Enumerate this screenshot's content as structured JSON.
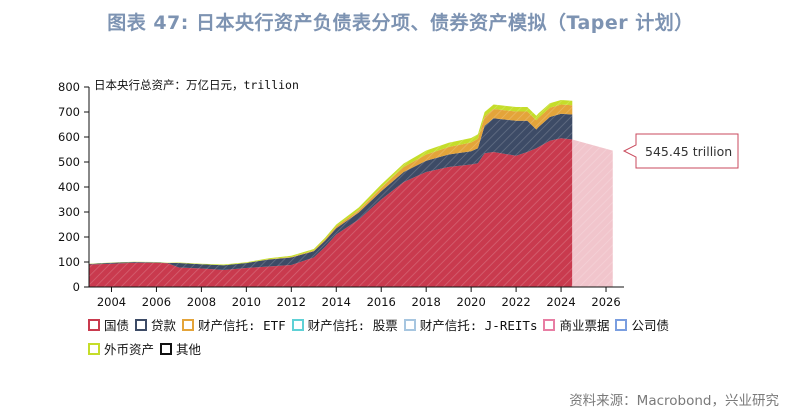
{
  "title": "图表 47: 日本央行资产负债表分项、债券资产模拟（Taper 计划）",
  "source": "资料来源：Macrobond，兴业研究",
  "colors": {
    "jgb": "#c93a4e",
    "jgb_projection": "#f1c5cc",
    "loans": "#3d4b66",
    "etf": "#e4a43a",
    "other_top": "#c5dd2a",
    "title": "#7d93b2",
    "callout_border": "#c94a5c"
  },
  "legend": [
    {
      "label": "国债",
      "color": "#c93a4e",
      "icon": "square-swatch"
    },
    {
      "label": "贷款",
      "color": "#3d4b66",
      "icon": "square-swatch"
    },
    {
      "label": "财产信托: ETF",
      "color": "#e4a43a",
      "icon": "square-swatch"
    },
    {
      "label": "财产信托: 股票",
      "color": "#5fd1d6",
      "icon": "square-swatch"
    },
    {
      "label": "财产信托: J-REITs",
      "color": "#a7c6e0",
      "icon": "square-swatch"
    },
    {
      "label": "商业票据",
      "color": "#e87ea4",
      "icon": "square-swatch"
    },
    {
      "label": "公司债",
      "color": "#7a9ee0",
      "icon": "square-swatch"
    },
    {
      "label": "外币资产",
      "color": "#c5dd2a",
      "icon": "square-swatch"
    },
    {
      "label": "其他",
      "color": "#111111",
      "icon": "square-swatch"
    }
  ],
  "chart_data": {
    "type": "area",
    "unit_label": "日本央行总资产：万亿日元，trillion",
    "xlim": [
      2003,
      2026.8
    ],
    "ylim": [
      0,
      800
    ],
    "x_ticks": [
      2004,
      2006,
      2008,
      2010,
      2012,
      2014,
      2016,
      2018,
      2020,
      2022,
      2024,
      2026
    ],
    "y_ticks": [
      0,
      100,
      200,
      300,
      400,
      500,
      600,
      700,
      800
    ],
    "x": [
      2003.0,
      2004.0,
      2005.0,
      2006.0,
      2006.5,
      2007.0,
      2008.0,
      2009.0,
      2010.0,
      2011.0,
      2012.0,
      2013.0,
      2013.5,
      2014.0,
      2015.0,
      2016.0,
      2017.0,
      2018.0,
      2019.0,
      2020.0,
      2020.3,
      2020.6,
      2021.0,
      2022.0,
      2022.5,
      2022.9,
      2023.0,
      2023.5,
      2024.0,
      2024.5
    ],
    "series": [
      {
        "name": "国债",
        "values": [
          90,
          93,
          97,
          97,
          95,
          78,
          74,
          68,
          76,
          82,
          88,
          118,
          160,
          210,
          270,
          350,
          420,
          460,
          480,
          490,
          495,
          535,
          540,
          525,
          540,
          555,
          560,
          585,
          595,
          590
        ]
      },
      {
        "name": "贷款",
        "values": [
          2,
          4,
          3,
          2,
          1,
          18,
          17,
          19,
          20,
          28,
          30,
          25,
          25,
          25,
          28,
          33,
          40,
          45,
          50,
          53,
          60,
          110,
          135,
          140,
          125,
          75,
          80,
          95,
          98,
          100
        ]
      },
      {
        "name": "财产信托: ETF",
        "values": [
          0,
          0,
          0,
          0,
          0,
          0,
          0,
          0,
          0,
          1,
          2,
          3,
          5,
          7,
          10,
          15,
          20,
          25,
          30,
          35,
          38,
          37,
          37,
          37,
          37,
          37,
          37,
          37,
          37,
          37
        ]
      },
      {
        "name": "外币资产",
        "values": [
          1,
          1,
          1,
          1,
          1,
          2,
          2,
          3,
          3,
          4,
          5,
          6,
          7,
          8,
          10,
          12,
          14,
          16,
          17,
          18,
          18,
          18,
          18,
          18,
          18,
          18,
          18,
          18,
          18,
          18
        ]
      }
    ],
    "projection": {
      "name": "国债",
      "x": [
        2024.5,
        2026.3
      ],
      "values": [
        590,
        545.45
      ],
      "label": "545.45 trillion"
    }
  }
}
